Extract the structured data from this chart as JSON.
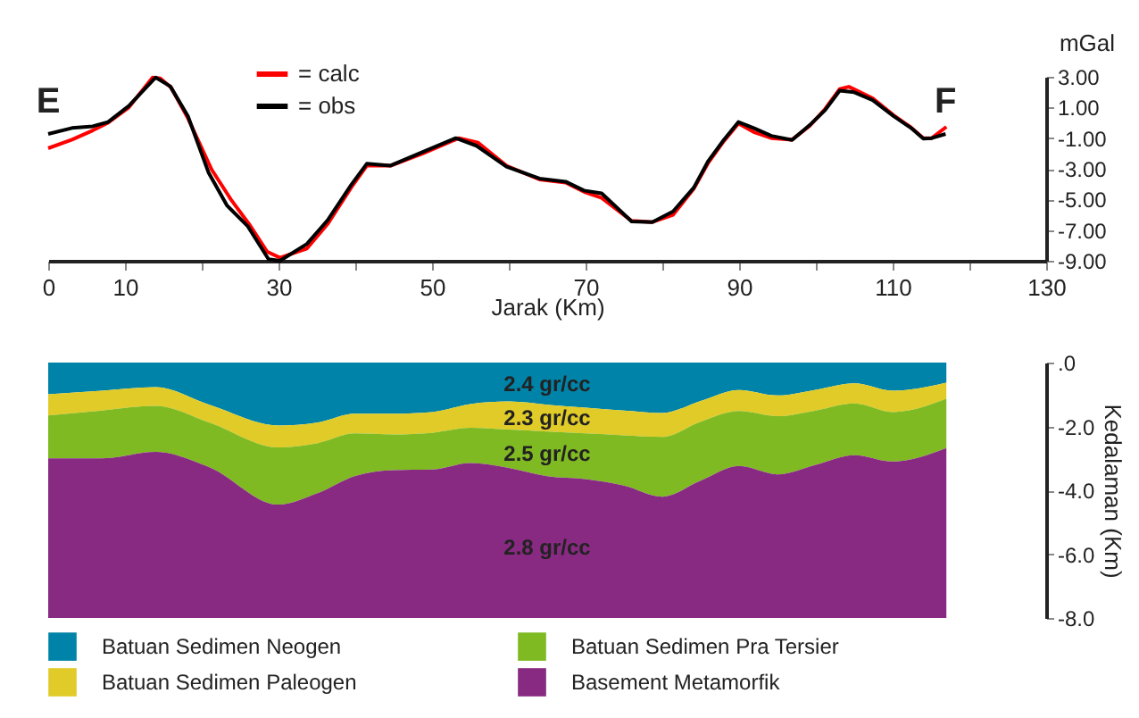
{
  "chart_data": [
    {
      "type": "line",
      "xlabel": "Jarak (Km)",
      "ylabel": "mGal",
      "xlim": [
        0,
        130
      ],
      "ylim": [
        -9,
        3
      ],
      "xticks": [
        0,
        10,
        {
          "value": 20,
          "label": null
        },
        30,
        {
          "value": 40,
          "label": null
        },
        50,
        {
          "value": 60,
          "label": null
        },
        70,
        {
          "value": 80,
          "label": null
        },
        90,
        {
          "value": 100,
          "label": null
        },
        110,
        {
          "value": 120,
          "label": null
        },
        130
      ],
      "yticks": [
        {
          "value": 3,
          "label": "3.00"
        },
        {
          "value": 1,
          "label": "1.00"
        },
        {
          "value": -1,
          "label": "-1.00"
        },
        {
          "value": -3,
          "label": "-3.00"
        },
        {
          "value": -5,
          "label": "-5.00"
        },
        {
          "value": -7,
          "label": "-7.00"
        },
        {
          "value": -9,
          "label": "-9.00"
        }
      ],
      "grid": false,
      "legend": "top left",
      "marker": "none",
      "line_style": "solid",
      "annotations": [
        "E",
        "F"
      ],
      "series": [
        {
          "name": "= calc",
          "color": "#ff0000",
          "x": [
            0,
            3.1,
            5.8,
            7.8,
            10.5,
            13.6,
            14.6,
            16,
            18.2,
            21.3,
            23.8,
            26.3,
            28.5,
            30.2,
            33.7,
            36.4,
            39.5,
            41.5,
            44.6,
            48.8,
            53.5,
            56,
            59.7,
            64,
            67.4,
            69.8,
            72.1,
            76,
            78.7,
            81.4,
            84.1,
            86,
            88,
            89.9,
            91.9,
            94.2,
            96.9,
            99.2,
            101.2,
            103.1,
            104.3,
            107.4,
            110.1,
            112.4,
            114,
            115.1,
            117
          ],
          "values": [
            -1.66,
            -1.1,
            -0.5,
            0.0,
            1.0,
            2.95,
            2.9,
            2.3,
            0.3,
            -3.06,
            -5.0,
            -6.7,
            -8.4,
            -8.8,
            -8.2,
            -6.6,
            -4.2,
            -2.8,
            -2.8,
            -2.0,
            -1.0,
            -1.3,
            -2.8,
            -3.7,
            -3.9,
            -4.5,
            -4.9,
            -6.4,
            -6.48,
            -6.0,
            -4.3,
            -2.6,
            -1.2,
            -0.05,
            -0.6,
            -1.0,
            -1.1,
            -0.2,
            0.9,
            2.2,
            2.35,
            1.6,
            0.5,
            -0.3,
            -1.0,
            -1.0,
            -0.26
          ]
        },
        {
          "name": "= obs",
          "color": "#000000",
          "x": [
            0,
            3.1,
            5.8,
            7.8,
            10.5,
            14.0,
            15.9,
            18.2,
            20.9,
            23.3,
            26.0,
            28.7,
            30.2,
            33.7,
            36.4,
            39.5,
            41.5,
            44.6,
            48.8,
            53.1,
            55.8,
            59.7,
            64.0,
            67.4,
            69.8,
            72.1,
            76.0,
            78.7,
            81.4,
            84.1,
            86.0,
            88.0,
            89.9,
            91.9,
            94.2,
            96.9,
            99.2,
            101.2,
            103.1,
            105.0,
            107.4,
            110.1,
            112.4,
            114.0,
            115.1,
            116.9
          ],
          "values": [
            -0.73,
            -0.34,
            -0.23,
            0.05,
            1.1,
            2.96,
            2.38,
            0.44,
            -3.26,
            -5.4,
            -6.75,
            -8.9,
            -9.0,
            -7.9,
            -6.36,
            -4.03,
            -2.67,
            -2.79,
            -1.9,
            -1.0,
            -1.5,
            -2.86,
            -3.64,
            -3.84,
            -4.42,
            -4.6,
            -6.44,
            -6.48,
            -5.78,
            -4.23,
            -2.48,
            -1.12,
            0.05,
            -0.34,
            -0.85,
            -1.12,
            -0.15,
            0.82,
            2.1,
            1.99,
            1.48,
            0.44,
            -0.34,
            -1.04,
            -1.0,
            -0.73
          ]
        }
      ]
    },
    {
      "type": "area",
      "stacked": true,
      "ylabel": "Kedalaman (Km)",
      "xlim": [
        0,
        130
      ],
      "ylim": [
        -8,
        0
      ],
      "tick_labels": "y",
      "yticks": [
        {
          "value": 0,
          "label": ".0"
        },
        {
          "value": -2,
          "label": "-2.0"
        },
        {
          "value": -4,
          "label": "-4.0"
        },
        {
          "value": -6,
          "label": "-6.0"
        },
        {
          "value": -8,
          "label": "-8.0"
        }
      ],
      "grid": false,
      "legend": "bottom",
      "annotations": [
        "2.4 gr/cc",
        "2.3 gr/cc",
        "2.5 gr/cc",
        "2.8 gr/cc"
      ],
      "x": [
        0,
        7,
        14,
        21,
        30,
        35,
        40,
        45,
        50,
        55,
        60,
        65,
        70,
        75,
        80,
        85,
        90,
        95,
        100,
        105,
        110,
        117
      ],
      "series": [
        {
          "name": "Batuan Sedimen Neogen",
          "color": "#0083a8",
          "values": [
            -0.99,
            -0.88,
            -0.77,
            -1.32,
            -1.97,
            -1.88,
            -1.6,
            -1.6,
            -1.55,
            -1.3,
            -1.22,
            -1.32,
            -1.41,
            -1.5,
            -1.58,
            -1.2,
            -0.86,
            -1.03,
            -0.85,
            -0.65,
            -0.88,
            -0.63
          ]
        },
        {
          "name": "Batuan Sedimen Paleogen",
          "color": "#e0cb28",
          "values": [
            -0.67,
            -0.62,
            -0.59,
            -0.56,
            -0.69,
            -0.65,
            -0.62,
            -0.65,
            -0.65,
            -0.74,
            -0.88,
            -0.84,
            -0.81,
            -0.78,
            -0.75,
            -0.65,
            -0.66,
            -0.65,
            -0.65,
            -0.63,
            -0.67,
            -0.5
          ]
        },
        {
          "name": "Batuan Sedimen Pra Tersier",
          "color": "#7fba22",
          "values": [
            -1.34,
            -1.5,
            -1.44,
            -1.4,
            -1.79,
            -1.57,
            -1.33,
            -1.12,
            -1.15,
            -1.11,
            -1.2,
            -1.4,
            -1.43,
            -1.57,
            -1.87,
            -1.85,
            -1.72,
            -1.82,
            -1.7,
            -1.62,
            -1.55,
            -1.55
          ]
        },
        {
          "name": "Basement Metamorfik",
          "color": "#882a82",
          "values": [
            -5.0,
            -5.0,
            -5.2,
            -4.72,
            -3.55,
            -3.9,
            -4.45,
            -4.63,
            -4.65,
            -4.85,
            -4.7,
            -4.44,
            -4.35,
            -4.15,
            -3.8,
            -4.3,
            -4.76,
            -4.5,
            -4.8,
            -5.1,
            -4.9,
            -5.32
          ]
        }
      ]
    }
  ]
}
